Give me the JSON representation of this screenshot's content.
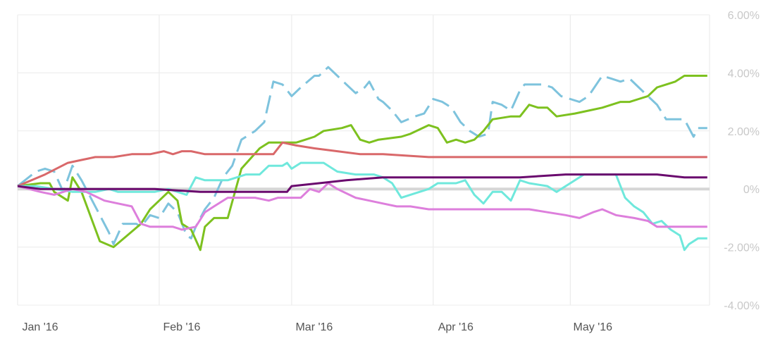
{
  "chart_data": {
    "type": "line",
    "title": "",
    "xlabel": "",
    "ylabel": "",
    "y_unit": "%",
    "ylim": [
      -4,
      6
    ],
    "xlim": [
      0,
      150
    ],
    "x_ticks": [
      {
        "label": "Jan '16",
        "x": 0
      },
      {
        "label": "Feb '16",
        "x": 31
      },
      {
        "label": "Mar '16",
        "x": 60
      },
      {
        "label": "Apr '16",
        "x": 91
      },
      {
        "label": "May '16",
        "x": 121
      }
    ],
    "y_ticks": [
      {
        "label": "6.00%",
        "value": 6
      },
      {
        "label": "4.00%",
        "value": 4
      },
      {
        "label": "2.00%",
        "value": 2
      },
      {
        "label": "0%",
        "value": 0
      },
      {
        "label": "-2.00%",
        "value": -2
      },
      {
        "label": "-4.00%",
        "value": -4
      }
    ],
    "grid": true,
    "legend": "none",
    "series": [
      {
        "color": "#7ec3dd",
        "dashed": true,
        "points": [
          [
            0,
            0.1
          ],
          [
            4,
            0.6
          ],
          [
            6,
            0.7
          ],
          [
            8,
            0.6
          ],
          [
            10,
            -0.1
          ],
          [
            12,
            0.8
          ],
          [
            14,
            0.3
          ],
          [
            17,
            -0.6
          ],
          [
            20,
            -1.5
          ],
          [
            21,
            -1.9
          ],
          [
            23,
            -1.2
          ],
          [
            26,
            -1.2
          ],
          [
            27,
            -1.3
          ],
          [
            29,
            -0.9
          ],
          [
            31,
            -1.0
          ],
          [
            33,
            -0.5
          ],
          [
            35,
            -0.8
          ],
          [
            37,
            -1.6
          ],
          [
            38,
            -1.7
          ],
          [
            39,
            -1.3
          ],
          [
            41,
            -0.7
          ],
          [
            43,
            -0.3
          ],
          [
            45,
            0.4
          ],
          [
            47,
            0.8
          ],
          [
            49,
            1.7
          ],
          [
            52,
            2.0
          ],
          [
            54,
            2.3
          ],
          [
            56,
            3.7
          ],
          [
            58,
            3.6
          ],
          [
            60,
            3.2
          ],
          [
            62,
            3.5
          ],
          [
            65,
            3.9
          ],
          [
            66,
            3.9
          ],
          [
            68,
            4.2
          ],
          [
            70,
            3.9
          ],
          [
            72,
            3.6
          ],
          [
            74,
            3.3
          ],
          [
            76,
            3.5
          ],
          [
            77,
            3.7
          ],
          [
            79,
            3.1
          ],
          [
            80,
            3.0
          ],
          [
            82,
            2.7
          ],
          [
            84,
            2.3
          ],
          [
            87,
            2.5
          ],
          [
            89,
            2.6
          ],
          [
            91,
            3.1
          ],
          [
            93,
            3.0
          ],
          [
            95,
            2.8
          ],
          [
            97,
            2.3
          ],
          [
            99,
            2.0
          ],
          [
            101,
            1.8
          ],
          [
            103,
            1.9
          ],
          [
            104,
            3.0
          ],
          [
            106,
            2.9
          ],
          [
            108,
            2.7
          ],
          [
            110,
            3.4
          ],
          [
            111,
            3.6
          ],
          [
            115,
            3.6
          ],
          [
            117,
            3.5
          ],
          [
            119,
            3.2
          ],
          [
            121,
            3.1
          ],
          [
            123,
            3.0
          ],
          [
            125,
            3.2
          ],
          [
            128,
            3.9
          ],
          [
            130,
            3.8
          ],
          [
            132,
            3.7
          ],
          [
            134,
            3.8
          ],
          [
            136,
            3.5
          ],
          [
            138,
            3.2
          ],
          [
            140,
            2.9
          ],
          [
            142,
            2.4
          ],
          [
            144,
            2.4
          ],
          [
            146,
            2.4
          ],
          [
            148,
            1.8
          ],
          [
            149,
            2.1
          ],
          [
            151,
            2.1
          ]
        ]
      },
      {
        "color": "#7dc11f",
        "dashed": false,
        "points": [
          [
            0,
            0.1
          ],
          [
            5,
            0.2
          ],
          [
            7,
            0.2
          ],
          [
            8,
            -0.1
          ],
          [
            11,
            -0.4
          ],
          [
            12,
            0.4
          ],
          [
            14,
            -0.1
          ],
          [
            18,
            -1.8
          ],
          [
            21,
            -2.0
          ],
          [
            24,
            -1.6
          ],
          [
            27,
            -1.2
          ],
          [
            29,
            -0.7
          ],
          [
            31,
            -0.4
          ],
          [
            33,
            -0.1
          ],
          [
            35,
            -0.4
          ],
          [
            36,
            -1.2
          ],
          [
            38,
            -1.4
          ],
          [
            40,
            -2.1
          ],
          [
            41,
            -1.3
          ],
          [
            43,
            -1.0
          ],
          [
            46,
            -1.0
          ],
          [
            49,
            0.7
          ],
          [
            53,
            1.4
          ],
          [
            55,
            1.6
          ],
          [
            58,
            1.6
          ],
          [
            61,
            1.6
          ],
          [
            63,
            1.7
          ],
          [
            65,
            1.8
          ],
          [
            67,
            2.0
          ],
          [
            71,
            2.1
          ],
          [
            73,
            2.2
          ],
          [
            75,
            1.7
          ],
          [
            77,
            1.6
          ],
          [
            79,
            1.7
          ],
          [
            84,
            1.8
          ],
          [
            86,
            1.9
          ],
          [
            90,
            2.2
          ],
          [
            92,
            2.1
          ],
          [
            94,
            1.6
          ],
          [
            96,
            1.7
          ],
          [
            98,
            1.6
          ],
          [
            100,
            1.7
          ],
          [
            102,
            2.0
          ],
          [
            104,
            2.4
          ],
          [
            108,
            2.5
          ],
          [
            110,
            2.5
          ],
          [
            112,
            2.9
          ],
          [
            114,
            2.8
          ],
          [
            116,
            2.8
          ],
          [
            118,
            2.5
          ],
          [
            122,
            2.6
          ],
          [
            125,
            2.7
          ],
          [
            128,
            2.8
          ],
          [
            132,
            3.0
          ],
          [
            134,
            3.0
          ],
          [
            136,
            3.1
          ],
          [
            138,
            3.2
          ],
          [
            140,
            3.5
          ],
          [
            142,
            3.6
          ],
          [
            144,
            3.7
          ],
          [
            146,
            3.9
          ],
          [
            148,
            3.9
          ],
          [
            151,
            3.9
          ]
        ]
      },
      {
        "color": "#d9686a",
        "dashed": false,
        "points": [
          [
            0,
            0.1
          ],
          [
            6,
            0.5
          ],
          [
            11,
            0.9
          ],
          [
            14,
            1.0
          ],
          [
            17,
            1.1
          ],
          [
            21,
            1.1
          ],
          [
            25,
            1.2
          ],
          [
            29,
            1.2
          ],
          [
            32,
            1.3
          ],
          [
            34,
            1.2
          ],
          [
            36,
            1.3
          ],
          [
            38,
            1.3
          ],
          [
            41,
            1.2
          ],
          [
            45,
            1.2
          ],
          [
            49,
            1.2
          ],
          [
            53,
            1.2
          ],
          [
            56,
            1.2
          ],
          [
            58,
            1.6
          ],
          [
            61,
            1.5
          ],
          [
            65,
            1.4
          ],
          [
            70,
            1.3
          ],
          [
            75,
            1.2
          ],
          [
            80,
            1.2
          ],
          [
            90,
            1.1
          ],
          [
            100,
            1.1
          ],
          [
            110,
            1.1
          ],
          [
            120,
            1.1
          ],
          [
            130,
            1.1
          ],
          [
            140,
            1.1
          ],
          [
            146,
            1.1
          ],
          [
            151,
            1.1
          ]
        ]
      },
      {
        "color": "#6fe8dc",
        "dashed": false,
        "points": [
          [
            0,
            0.1
          ],
          [
            4,
            0.1
          ],
          [
            8,
            0.0
          ],
          [
            12,
            -0.1
          ],
          [
            17,
            -0.1
          ],
          [
            20,
            0.0
          ],
          [
            22,
            -0.1
          ],
          [
            26,
            -0.1
          ],
          [
            28,
            -0.1
          ],
          [
            30,
            -0.1
          ],
          [
            33,
            0.0
          ],
          [
            35,
            -0.1
          ],
          [
            37,
            -0.2
          ],
          [
            38,
            0.1
          ],
          [
            39,
            0.4
          ],
          [
            41,
            0.3
          ],
          [
            46,
            0.3
          ],
          [
            50,
            0.5
          ],
          [
            53,
            0.5
          ],
          [
            55,
            0.8
          ],
          [
            58,
            0.8
          ],
          [
            59,
            0.9
          ],
          [
            60,
            0.7
          ],
          [
            62,
            0.9
          ],
          [
            65,
            0.9
          ],
          [
            67,
            0.9
          ],
          [
            70,
            0.6
          ],
          [
            74,
            0.5
          ],
          [
            78,
            0.5
          ],
          [
            80,
            0.4
          ],
          [
            82,
            0.2
          ],
          [
            84,
            -0.3
          ],
          [
            86,
            -0.2
          ],
          [
            88,
            -0.1
          ],
          [
            90,
            0.0
          ],
          [
            92,
            0.2
          ],
          [
            96,
            0.2
          ],
          [
            98,
            0.3
          ],
          [
            100,
            -0.2
          ],
          [
            102,
            -0.5
          ],
          [
            104,
            -0.1
          ],
          [
            106,
            -0.1
          ],
          [
            108,
            -0.4
          ],
          [
            110,
            0.3
          ],
          [
            112,
            0.2
          ],
          [
            116,
            0.1
          ],
          [
            118,
            -0.1
          ],
          [
            121,
            0.2
          ],
          [
            124,
            0.5
          ],
          [
            127,
            0.5
          ],
          [
            131,
            0.5
          ],
          [
            133,
            -0.3
          ],
          [
            135,
            -0.6
          ],
          [
            137,
            -0.8
          ],
          [
            139,
            -1.2
          ],
          [
            141,
            -1.1
          ],
          [
            143,
            -1.4
          ],
          [
            145,
            -1.6
          ],
          [
            146,
            -2.1
          ],
          [
            147,
            -1.9
          ],
          [
            149,
            -1.7
          ],
          [
            151,
            -1.7
          ]
        ]
      },
      {
        "color": "#dd7fdc",
        "dashed": false,
        "points": [
          [
            0,
            0.1
          ],
          [
            5,
            -0.1
          ],
          [
            8,
            -0.2
          ],
          [
            12,
            0.0
          ],
          [
            15,
            -0.1
          ],
          [
            19,
            -0.4
          ],
          [
            22,
            -0.5
          ],
          [
            25,
            -0.6
          ],
          [
            27,
            -1.2
          ],
          [
            29,
            -1.3
          ],
          [
            32,
            -1.3
          ],
          [
            34,
            -1.3
          ],
          [
            36,
            -1.4
          ],
          [
            39,
            -1.3
          ],
          [
            41,
            -0.8
          ],
          [
            43,
            -0.6
          ],
          [
            46,
            -0.3
          ],
          [
            49,
            -0.3
          ],
          [
            52,
            -0.3
          ],
          [
            55,
            -0.4
          ],
          [
            57,
            -0.3
          ],
          [
            60,
            -0.3
          ],
          [
            62,
            -0.3
          ],
          [
            64,
            0.0
          ],
          [
            66,
            -0.1
          ],
          [
            68,
            0.2
          ],
          [
            70,
            0.0
          ],
          [
            74,
            -0.3
          ],
          [
            77,
            -0.4
          ],
          [
            80,
            -0.5
          ],
          [
            83,
            -0.6
          ],
          [
            86,
            -0.6
          ],
          [
            90,
            -0.7
          ],
          [
            95,
            -0.7
          ],
          [
            100,
            -0.7
          ],
          [
            104,
            -0.7
          ],
          [
            108,
            -0.7
          ],
          [
            112,
            -0.7
          ],
          [
            116,
            -0.8
          ],
          [
            120,
            -0.9
          ],
          [
            123,
            -1.0
          ],
          [
            126,
            -0.8
          ],
          [
            128,
            -0.7
          ],
          [
            131,
            -0.9
          ],
          [
            135,
            -1.0
          ],
          [
            138,
            -1.1
          ],
          [
            140,
            -1.3
          ],
          [
            143,
            -1.3
          ],
          [
            146,
            -1.3
          ],
          [
            148,
            -1.3
          ],
          [
            151,
            -1.3
          ]
        ]
      },
      {
        "color": "#6a0a6e",
        "dashed": false,
        "points": [
          [
            0,
            0.1
          ],
          [
            5,
            0.0
          ],
          [
            10,
            0.0
          ],
          [
            20,
            0.0
          ],
          [
            30,
            0.0
          ],
          [
            40,
            -0.1
          ],
          [
            50,
            -0.1
          ],
          [
            59,
            -0.1
          ],
          [
            60,
            0.1
          ],
          [
            66,
            0.2
          ],
          [
            72,
            0.3
          ],
          [
            80,
            0.4
          ],
          [
            90,
            0.4
          ],
          [
            100,
            0.4
          ],
          [
            106,
            0.4
          ],
          [
            110,
            0.4
          ],
          [
            120,
            0.5
          ],
          [
            125,
            0.5
          ],
          [
            130,
            0.5
          ],
          [
            132,
            0.5
          ],
          [
            140,
            0.5
          ],
          [
            146,
            0.4
          ],
          [
            151,
            0.4
          ]
        ]
      }
    ]
  }
}
